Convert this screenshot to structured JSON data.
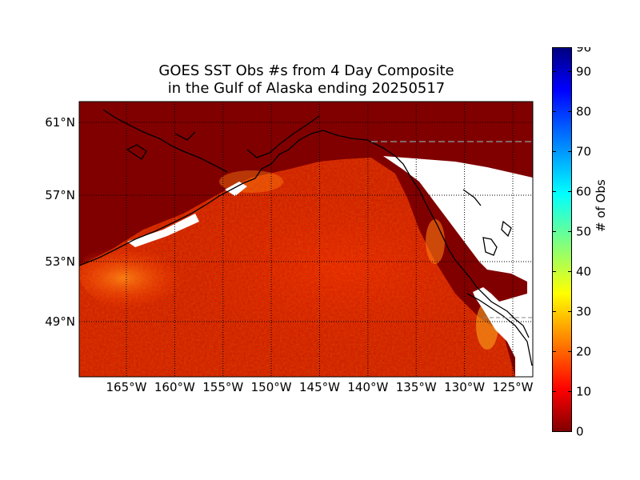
{
  "title": {
    "line1": "GOES SST Obs #s from 4 Day Composite",
    "line2": "in the Gulf of Alaska ending 20250517"
  },
  "map": {
    "lat_labels": [
      "61°N",
      "57°N",
      "53°N",
      "49°N"
    ],
    "lon_labels": [
      "165°W",
      "160°W",
      "155°W",
      "150°W",
      "145°W",
      "140°W",
      "135°W",
      "130°W",
      "125°W"
    ],
    "lat_values": [
      61,
      57,
      53,
      49
    ],
    "lon_values": [
      -165,
      -160,
      -155,
      -150,
      -145,
      -140,
      -135,
      -130,
      -125
    ],
    "background_color": "#800000",
    "land_color": "#ffffff",
    "coast_color": "#000000"
  },
  "colorbar": {
    "label": "# of Obs",
    "min": 0,
    "max": 96,
    "ticks": [
      0,
      10,
      20,
      30,
      40,
      50,
      60,
      70,
      80,
      90,
      96
    ],
    "colormap": "jet_r"
  }
}
